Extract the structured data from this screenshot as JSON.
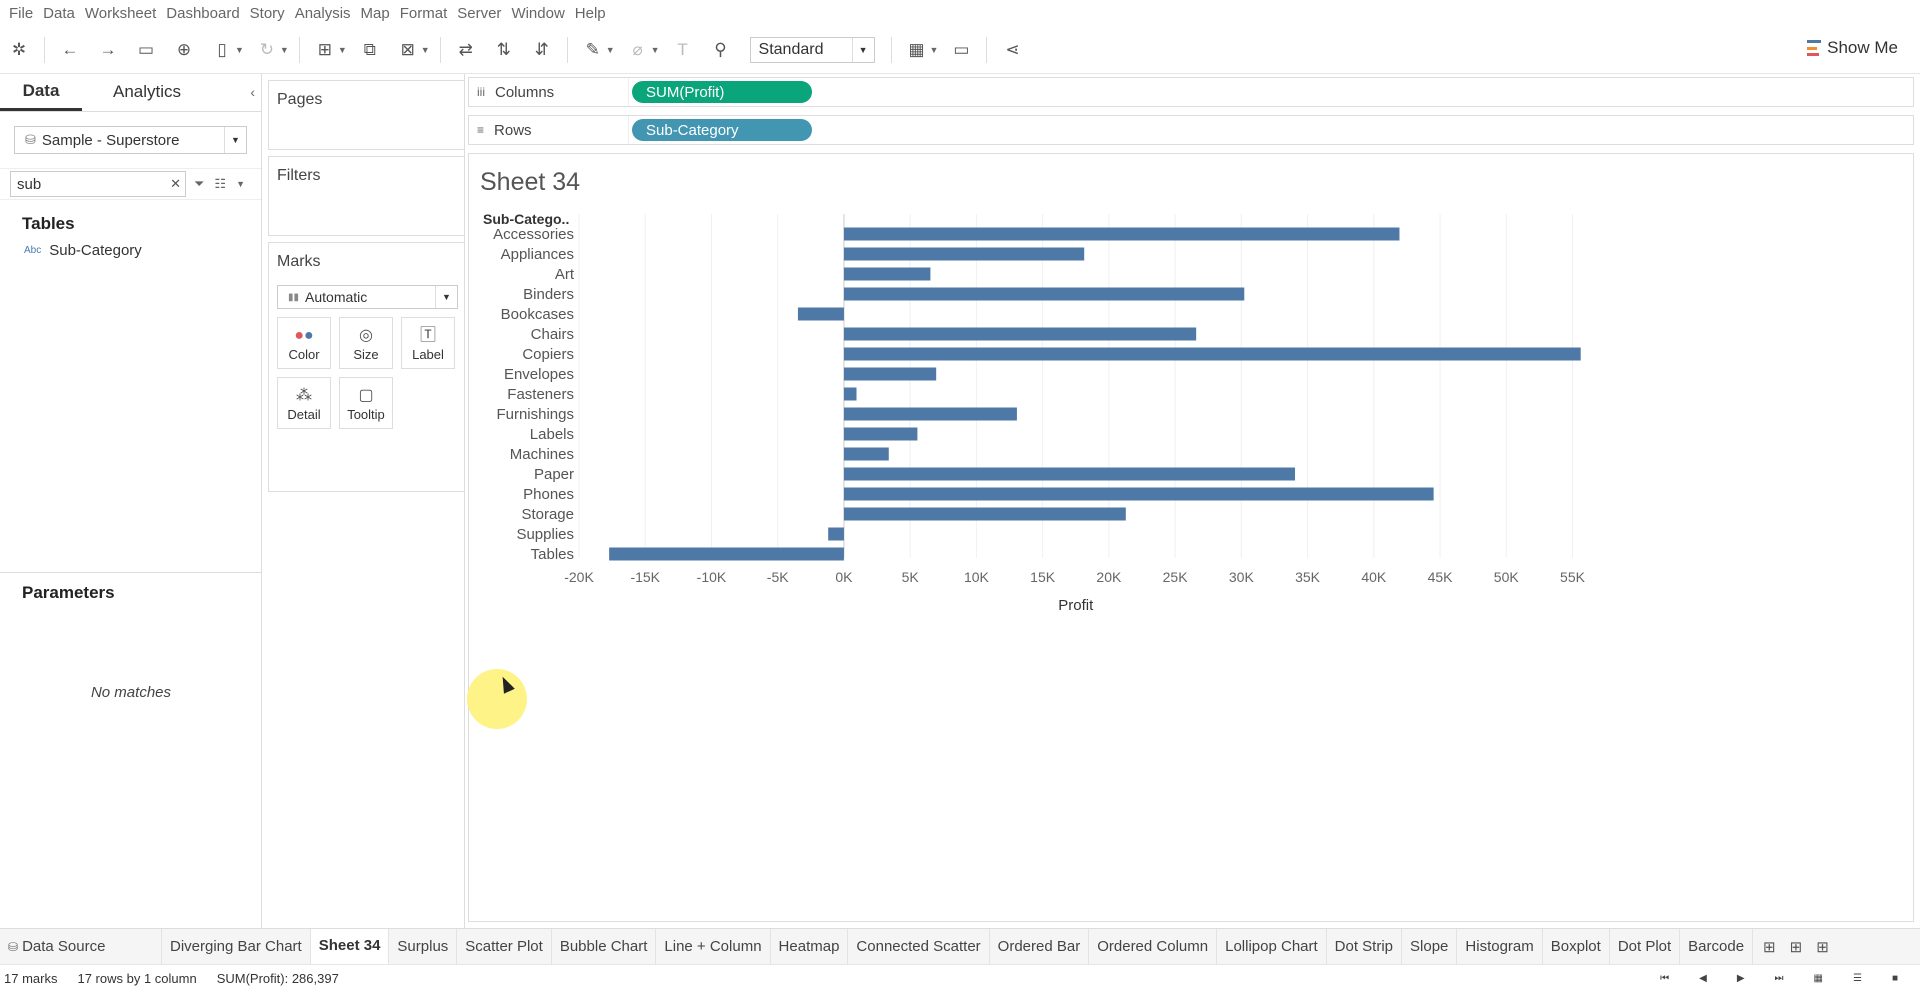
{
  "menu": [
    "File",
    "Data",
    "Worksheet",
    "Dashboard",
    "Story",
    "Analysis",
    "Map",
    "Format",
    "Server",
    "Window",
    "Help"
  ],
  "toolbar": {
    "fit_label": "Standard",
    "show_me_label": "Show Me"
  },
  "datapane": {
    "tab_data": "Data",
    "tab_analytics": "Analytics",
    "datasource": "Sample - Superstore",
    "search_value": "sub",
    "tables_title": "Tables",
    "field": "Sub-Category",
    "field_type": "Abc",
    "parameters_title": "Parameters",
    "no_matches": "No matches"
  },
  "cards": {
    "pages": "Pages",
    "filters": "Filters",
    "marks": "Marks",
    "mark_type": "Automatic",
    "buttons": [
      "Color",
      "Size",
      "Label",
      "Detail",
      "Tooltip"
    ]
  },
  "shelves": {
    "columns_label": "Columns",
    "columns_pill": "SUM(Profit)",
    "rows_label": "Rows",
    "rows_pill": "Sub-Category"
  },
  "sheet_title": "Sheet 34",
  "chart_data": {
    "type": "bar",
    "orientation": "horizontal",
    "row_header": "Sub-Catego..",
    "xlabel": "Profit",
    "categories": [
      "Accessories",
      "Appliances",
      "Art",
      "Binders",
      "Bookcases",
      "Chairs",
      "Copiers",
      "Envelopes",
      "Fasteners",
      "Furnishings",
      "Labels",
      "Machines",
      "Paper",
      "Phones",
      "Storage",
      "Supplies",
      "Tables"
    ],
    "values": [
      41937,
      18138,
      6528,
      30222,
      -3473,
      26590,
      55618,
      6964,
      950,
      13059,
      5546,
      3385,
      34053,
      44516,
      21279,
      -1189,
      -17725
    ],
    "xlim": [
      -20000,
      57000
    ],
    "ticks": [
      -20000,
      -15000,
      -10000,
      -5000,
      0,
      5000,
      10000,
      15000,
      20000,
      25000,
      30000,
      35000,
      40000,
      45000,
      50000,
      55000
    ],
    "tick_labels": [
      "-20K",
      "-15K",
      "-10K",
      "-5K",
      "0K",
      "5K",
      "10K",
      "15K",
      "20K",
      "25K",
      "30K",
      "35K",
      "40K",
      "45K",
      "50K",
      "55K"
    ],
    "bar_color": "#4e79a7",
    "grid": true
  },
  "sheet_tabs": [
    "Data Source",
    "Diverging Bar Chart",
    "Sheet 34",
    "Surplus",
    "Scatter Plot",
    "Bubble Chart",
    "Line + Column",
    "Heatmap",
    "Connected Scatter",
    "Ordered Bar",
    "Ordered Column",
    "Lollipop Chart",
    "Dot Strip",
    "Slope",
    "Histogram",
    "Boxplot",
    "Dot Plot",
    "Barcode"
  ],
  "active_tab": "Sheet 34",
  "status": {
    "marks": "17 marks",
    "dims": "17 rows by 1 column",
    "sum": "SUM(Profit): 286,397"
  }
}
